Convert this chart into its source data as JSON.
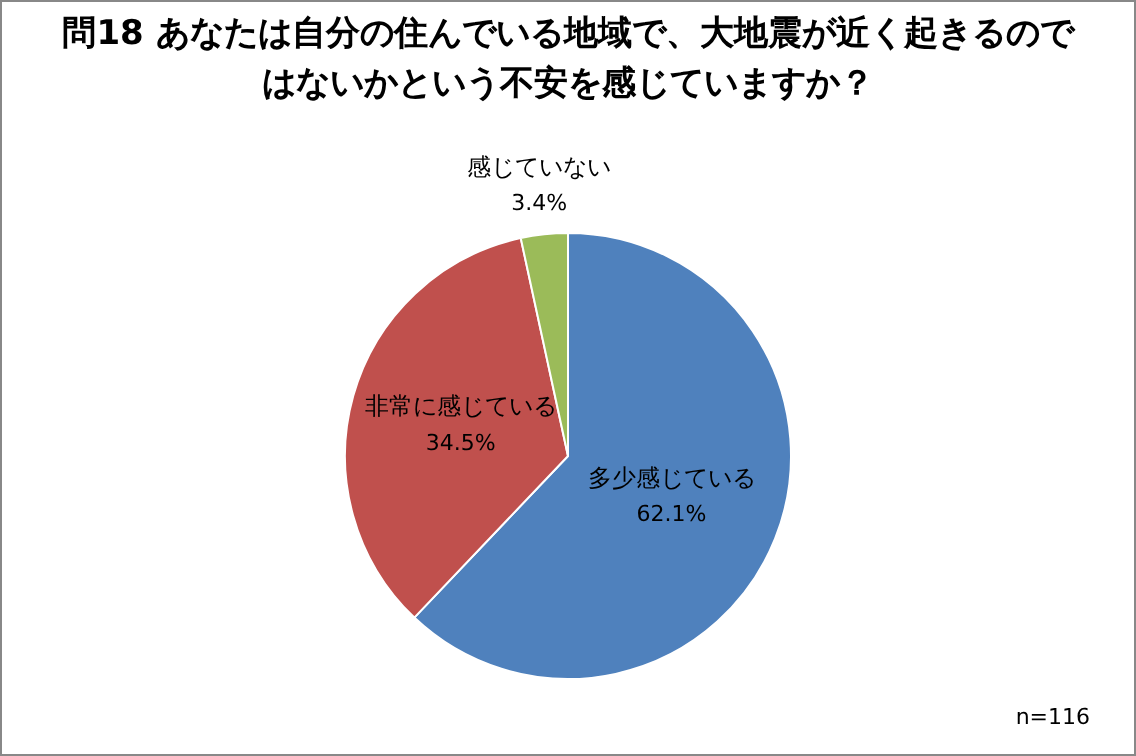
{
  "chart_data": {
    "type": "pie",
    "title": "問18  あなたは自分の住んでいる地域で、大地震が近く起きるのではないかという不安を感じていますか？",
    "categories": [
      "多少感じている",
      "非常に感じている",
      "感じていない"
    ],
    "values": [
      62.1,
      34.5,
      3.4
    ],
    "value_labels": [
      "62.1%",
      "34.5%",
      "3.4%"
    ],
    "colors": [
      "#4f81bd",
      "#c0504d",
      "#9bbb59"
    ],
    "legend": false,
    "annotations": [
      "n=116"
    ]
  }
}
